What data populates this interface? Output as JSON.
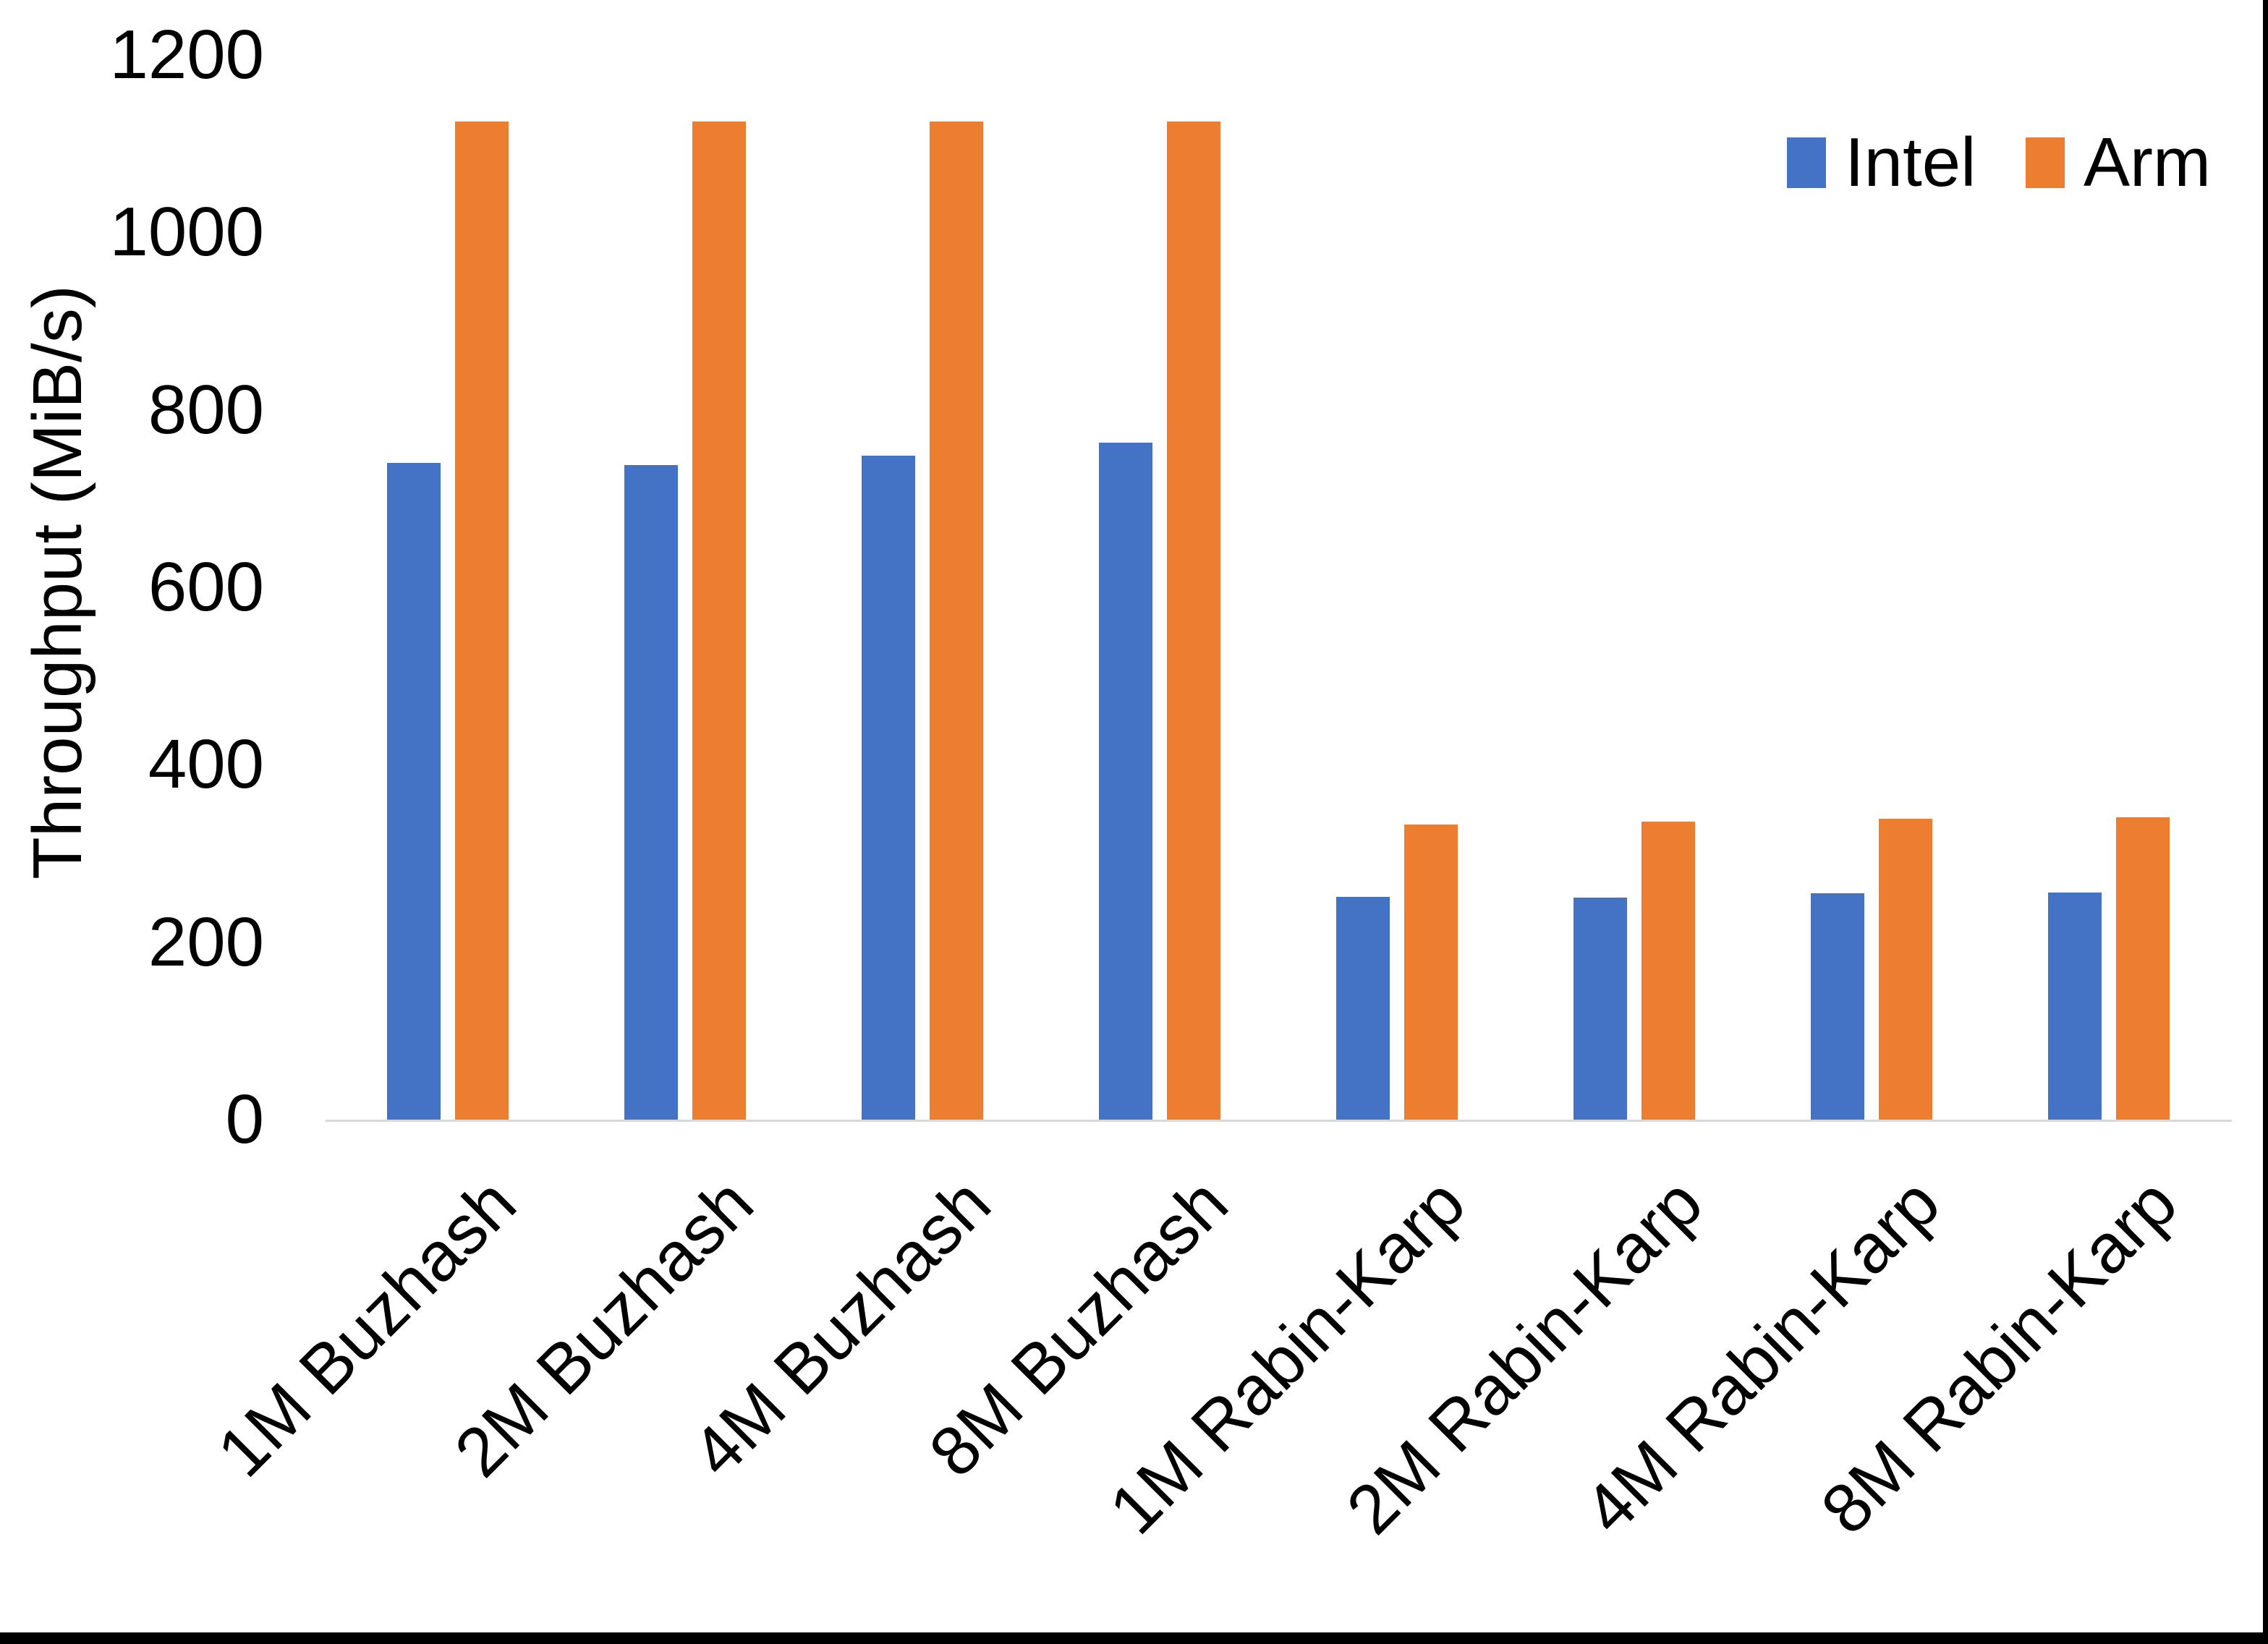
{
  "chart_data": {
    "type": "bar",
    "title": "",
    "xlabel": "",
    "ylabel": "Throughput (MiB/s)",
    "categories": [
      "1M Buzhash",
      "2M Buzhash",
      "4M Buzhash",
      "8M Buzhash",
      "1M Rabin-Karp",
      "2M Rabin-Karp",
      "4M Rabin-Karp",
      "8M Rabin-Karp"
    ],
    "series": [
      {
        "name": "Intel",
        "color": "#4472c4",
        "values": [
          740,
          738,
          748,
          763,
          251,
          250,
          255,
          256
        ]
      },
      {
        "name": "Arm",
        "color": "#ed7d31",
        "values": [
          1125,
          1125,
          1125,
          1125,
          333,
          336,
          339,
          341
        ]
      }
    ],
    "ylim": [
      0,
      1200
    ],
    "yticks": [
      0,
      200,
      400,
      600,
      800,
      1000,
      1200
    ],
    "grid": false,
    "legend_position": "top-right",
    "axis_line_color": "#d9d9d9",
    "text_color": "#000000",
    "frame_color": "#000000"
  }
}
